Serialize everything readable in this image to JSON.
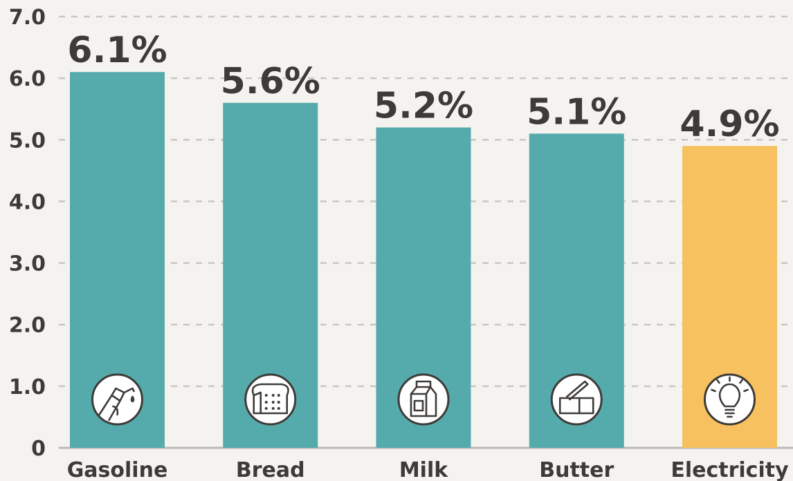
{
  "chart_data": {
    "type": "bar",
    "categories": [
      "Gasoline",
      "Bread",
      "Milk",
      "Butter",
      "Electricity"
    ],
    "values": [
      6.1,
      5.6,
      5.2,
      5.1,
      4.9
    ],
    "value_labels": [
      "6.1%",
      "5.6%",
      "5.2%",
      "5.1%",
      "4.9%"
    ],
    "icons": [
      "fuel-nozzle-icon",
      "bread-icon",
      "milk-carton-icon",
      "butter-icon",
      "lightbulb-icon"
    ],
    "colors": [
      "#55abac",
      "#55abac",
      "#55abac",
      "#55abac",
      "#f6c15e"
    ],
    "y_ticks": [
      "0",
      "1.0",
      "2.0",
      "3.0",
      "4.0",
      "5.0",
      "6.0",
      "7.0"
    ],
    "ylim": [
      0,
      7
    ],
    "grid": true,
    "title": "",
    "xlabel": "",
    "ylabel": ""
  }
}
